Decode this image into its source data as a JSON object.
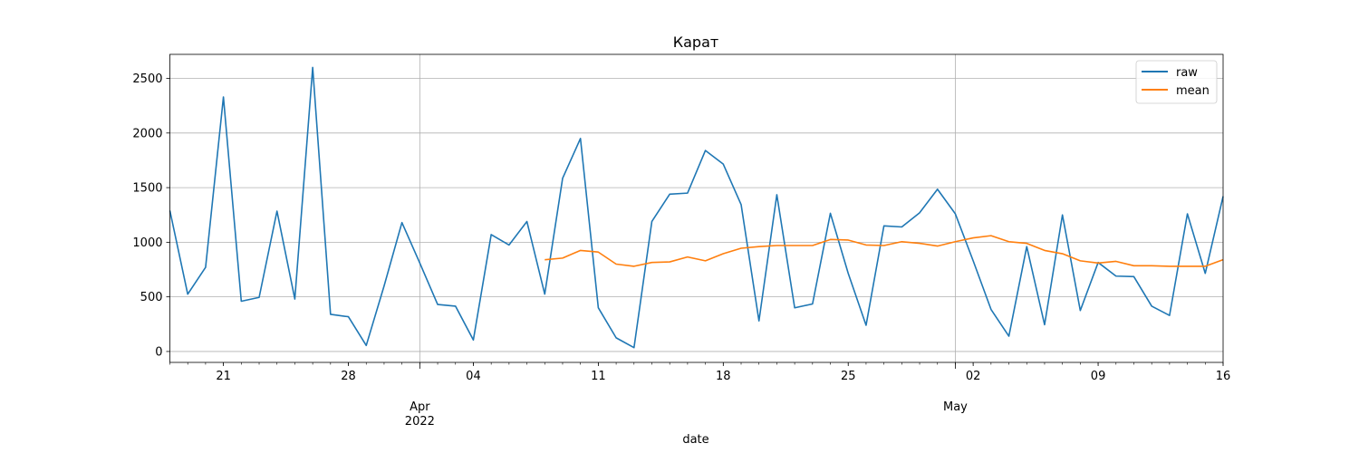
{
  "chart_data": {
    "type": "line",
    "title": "Карат",
    "xlabel": "date",
    "ylabel": "",
    "xlim": [
      "2022-03-18",
      "2022-05-16"
    ],
    "ylim": [
      -100,
      2720
    ],
    "grid": true,
    "legend_position": "top-right",
    "x_axis": {
      "major_ticks": [
        {
          "date": "2022-04-01",
          "label": "Apr",
          "sublabel": "2022"
        },
        {
          "date": "2022-05-01",
          "label": "May",
          "sublabel": ""
        }
      ],
      "minor_labeled_ticks": [
        {
          "date": "2022-03-21",
          "label": "21"
        },
        {
          "date": "2022-03-28",
          "label": "28"
        },
        {
          "date": "2022-04-04",
          "label": "04"
        },
        {
          "date": "2022-04-11",
          "label": "11"
        },
        {
          "date": "2022-04-18",
          "label": "18"
        },
        {
          "date": "2022-04-25",
          "label": "25"
        },
        {
          "date": "2022-05-02",
          "label": "02"
        },
        {
          "date": "2022-05-09",
          "label": "09"
        },
        {
          "date": "2022-05-16",
          "label": "16"
        }
      ]
    },
    "y_axis": {
      "ticks": [
        0,
        500,
        1000,
        1500,
        2000,
        2500
      ]
    },
    "series": [
      {
        "name": "raw",
        "color": "#1f77b4",
        "start_date": "2022-03-18",
        "values": [
          1290,
          525,
          770,
          2330,
          460,
          495,
          1285,
          480,
          2600,
          340,
          318,
          55,
          600,
          1180,
          810,
          430,
          415,
          105,
          1070,
          975,
          1190,
          525,
          1585,
          1950,
          400,
          125,
          35,
          1190,
          1440,
          1450,
          1840,
          1715,
          1345,
          280,
          1435,
          400,
          435,
          1265,
          715,
          240,
          1150,
          1140,
          1270,
          1485,
          1260,
          830,
          385,
          140,
          960,
          245,
          1250,
          375,
          815,
          690,
          685,
          415,
          330,
          1260,
          715,
          1420
        ]
      },
      {
        "name": "mean",
        "color": "#ff7f0e",
        "start_date": "2022-04-08",
        "values": [
          840,
          855,
          925,
          910,
          800,
          780,
          815,
          820,
          865,
          830,
          895,
          945,
          960,
          970,
          970,
          970,
          1025,
          1020,
          975,
          970,
          1005,
          990,
          965,
          1005,
          1040,
          1060,
          1005,
          990,
          925,
          895,
          830,
          810,
          825,
          785,
          785,
          780,
          780,
          780,
          840
        ]
      }
    ]
  }
}
